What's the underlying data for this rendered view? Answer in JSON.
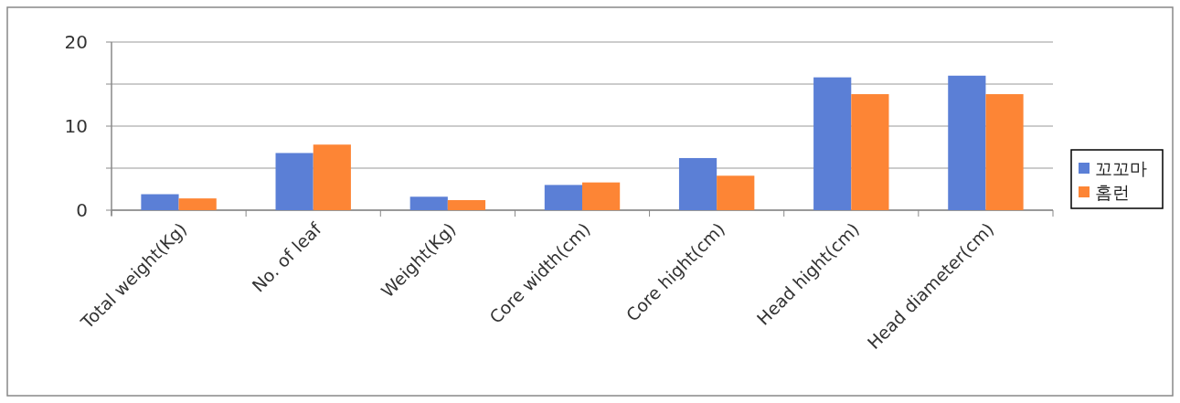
{
  "chart_data": {
    "type": "bar",
    "categories": [
      "Total weight(Kg)",
      "No. of leaf",
      "Weight(Kg)",
      "Core width(cm)",
      "Core hight(cm)",
      "Head hight(cm)",
      "Head diameter(cm)"
    ],
    "series": [
      {
        "name": "꼬꼬마",
        "color": "#5b7fd6",
        "values": [
          1.9,
          6.8,
          1.6,
          3.0,
          6.2,
          15.8,
          16.0
        ]
      },
      {
        "name": "홈런",
        "color": "#fd8535",
        "values": [
          1.4,
          7.8,
          1.2,
          3.3,
          4.1,
          13.8,
          13.8
        ]
      }
    ],
    "ylim": [
      0,
      20
    ],
    "yticks": [
      0,
      {
        "value": 5,
        "label": null
      },
      10,
      {
        "value": 15,
        "label": null
      },
      20
    ],
    "grid": "y",
    "legend": "right"
  }
}
